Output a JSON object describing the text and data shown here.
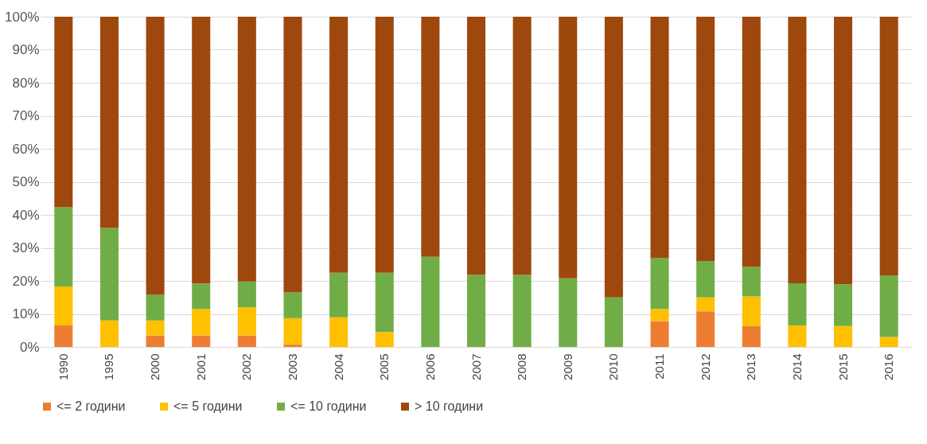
{
  "chart_data": {
    "type": "bar",
    "stacked": true,
    "categories": [
      "1990",
      "1995",
      "2000",
      "2001",
      "2002",
      "2003",
      "2004",
      "2005",
      "2006",
      "2007",
      "2008",
      "2009",
      "2010",
      "2011",
      "2012",
      "2013",
      "2014",
      "2015",
      "2016"
    ],
    "series": [
      {
        "name": "<= 2 години",
        "color": "#ed7d31",
        "values": [
          6.5,
          0,
          3.5,
          3.5,
          3.5,
          0.7,
          0,
          0,
          0,
          0,
          0,
          0,
          0,
          7.8,
          10.8,
          6.3,
          0,
          0,
          0
        ]
      },
      {
        "name": "<= 5 години",
        "color": "#ffc000",
        "values": [
          11.8,
          8,
          4.5,
          8,
          8.5,
          8,
          9,
          4.5,
          0,
          0,
          0,
          0,
          0,
          3.7,
          4.2,
          9,
          6.5,
          6.3,
          3
        ]
      },
      {
        "name": "<= 10 години",
        "color": "#70ad47",
        "values": [
          24,
          28,
          7.8,
          7.7,
          7.8,
          7.8,
          13.5,
          18,
          27.3,
          21.8,
          21.8,
          20.8,
          15,
          15.5,
          11,
          8.9,
          12.8,
          12.7,
          18.7
        ]
      },
      {
        "name": "> 10 години",
        "color": "#9e480e",
        "values": [
          57.7,
          64,
          84.2,
          80.8,
          80.2,
          83.5,
          77.5,
          77.5,
          72.7,
          78.2,
          78.2,
          79.2,
          85,
          73,
          74,
          75.8,
          80.7,
          81,
          78.3
        ]
      }
    ],
    "ylim": [
      0,
      100
    ],
    "yticks": [
      {
        "value": 0,
        "label": "0%"
      },
      {
        "value": 10,
        "label": "10%"
      },
      {
        "value": 20,
        "label": "20%"
      },
      {
        "value": 30,
        "label": "30%"
      },
      {
        "value": 40,
        "label": "40%"
      },
      {
        "value": 50,
        "label": "50%"
      },
      {
        "value": 60,
        "label": "60%"
      },
      {
        "value": 70,
        "label": "70%"
      },
      {
        "value": 80,
        "label": "80%"
      },
      {
        "value": 90,
        "label": "90%"
      },
      {
        "value": 100,
        "label": "100%"
      }
    ],
    "grid": "y",
    "legend": "bottom"
  }
}
